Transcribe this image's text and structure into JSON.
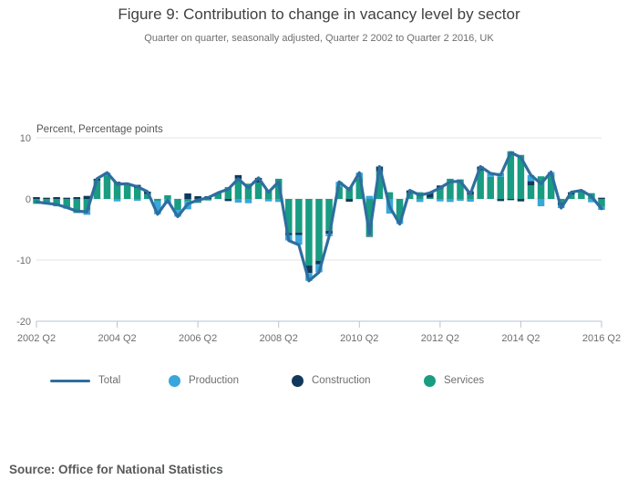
{
  "header": {
    "title": "Figure 9: Contribution to change in vacancy level by sector",
    "subtitle": "Quarter on quarter, seasonally adjusted, Quarter 2 2002 to Quarter 2 2016, UK"
  },
  "footer": {
    "source": "Source: Office for National Statistics"
  },
  "legend": {
    "items": [
      {
        "label": "Total",
        "swatch": "line",
        "color": "#2e6e9f"
      },
      {
        "label": "Production",
        "swatch": "circle",
        "color": "#37a7dc"
      },
      {
        "label": "Construction",
        "swatch": "circle",
        "color": "#10395c"
      },
      {
        "label": "Services",
        "swatch": "circle",
        "color": "#199c82"
      }
    ]
  },
  "colors": {
    "grid": "#e4e4e4",
    "axis": "#b5c6d4",
    "tick_text": "#6d6e71",
    "unit_label_text": "#555555"
  },
  "chart_data": {
    "type": "combo-stacked-bar-line",
    "title": "Figure 9: Contribution to change in vacancy level by sector",
    "subtitle": "Quarter on quarter, seasonally adjusted, Quarter 2 2002 to Quarter 2 2016, UK",
    "ylabel": "Percent, Percentage points",
    "ylim": [
      -20,
      10
    ],
    "yticks": [
      10,
      0,
      -10,
      -20
    ],
    "grid": "horizontal",
    "legend_position": "bottom",
    "xtick_labels": [
      "2002 Q2",
      "2004 Q2",
      "2006 Q2",
      "2008 Q2",
      "2010 Q2",
      "2012 Q2",
      "2014 Q2",
      "2016 Q2"
    ],
    "xtick_indices": [
      0,
      8,
      16,
      24,
      32,
      40,
      48,
      56
    ],
    "stack_order_from_baseline": [
      "Services",
      "Construction",
      "Production"
    ],
    "categories": [
      "2002 Q2",
      "2002 Q3",
      "2002 Q4",
      "2003 Q1",
      "2003 Q2",
      "2003 Q3",
      "2003 Q4",
      "2004 Q1",
      "2004 Q2",
      "2004 Q3",
      "2004 Q4",
      "2005 Q1",
      "2005 Q2",
      "2005 Q3",
      "2005 Q4",
      "2006 Q1",
      "2006 Q2",
      "2006 Q3",
      "2006 Q4",
      "2007 Q1",
      "2007 Q2",
      "2007 Q3",
      "2007 Q4",
      "2008 Q1",
      "2008 Q2",
      "2008 Q3",
      "2008 Q4",
      "2009 Q1",
      "2009 Q2",
      "2009 Q3",
      "2009 Q4",
      "2010 Q1",
      "2010 Q2",
      "2010 Q3",
      "2010 Q4",
      "2011 Q1",
      "2011 Q2",
      "2011 Q3",
      "2011 Q4",
      "2012 Q1",
      "2012 Q2",
      "2012 Q3",
      "2012 Q4",
      "2013 Q1",
      "2013 Q2",
      "2013 Q3",
      "2013 Q4",
      "2014 Q1",
      "2014 Q2",
      "2014 Q3",
      "2014 Q4",
      "2015 Q1",
      "2015 Q2",
      "2015 Q3",
      "2015 Q4",
      "2016 Q1",
      "2016 Q2"
    ],
    "bar_series": [
      {
        "name": "Production",
        "color": "#37a7dc",
        "values": [
          0,
          -0.2,
          0,
          -0.2,
          0,
          -0.7,
          0,
          0.5,
          -0.4,
          0,
          -0.3,
          0,
          -2.2,
          -0.8,
          -1.1,
          -1.3,
          0,
          0,
          0,
          0,
          -0.6,
          -0.7,
          0,
          -0.4,
          -0.5,
          -0.9,
          -1.6,
          -1.3,
          -1.3,
          -0.4,
          0.75,
          0,
          0.9,
          0.5,
          0,
          -2.4,
          -0.7,
          0,
          -0.5,
          0,
          -0.4,
          -0.5,
          -0.3,
          -0.45,
          0,
          0.6,
          0.65,
          0,
          0,
          1.0,
          -1.2,
          0.4,
          -0.5,
          0,
          0,
          -0.55,
          -0.5
        ]
      },
      {
        "name": "Construction",
        "color": "#10395c",
        "values": [
          0.3,
          0.2,
          0.3,
          0.2,
          0.3,
          0.5,
          0.3,
          0,
          0.3,
          0.2,
          0.5,
          0.4,
          0,
          0,
          0,
          0.9,
          0.45,
          0.45,
          0,
          -0.35,
          0.6,
          0,
          0.75,
          0,
          0,
          -0.3,
          -0.4,
          -1.2,
          -0.6,
          -0.5,
          0,
          -0.45,
          0,
          -0.1,
          0.75,
          0,
          0,
          0.45,
          0,
          0.8,
          0.5,
          0,
          0,
          0.55,
          0.6,
          0,
          -0.35,
          -0.2,
          -0.4,
          0.7,
          0,
          0,
          -0.35,
          0.35,
          0.25,
          0,
          0.2
        ]
      },
      {
        "name": "Services",
        "color": "#199c82",
        "values": [
          -0.8,
          -0.7,
          -1.2,
          -1.4,
          -2.3,
          -1.9,
          3.0,
          3.8,
          2.5,
          2.3,
          1.8,
          0.8,
          -0.3,
          0.6,
          -1.8,
          -0.4,
          -0.65,
          -0.25,
          1.0,
          1.95,
          3.3,
          2.5,
          2.7,
          1.5,
          3.3,
          -5.6,
          -5.5,
          -10.9,
          -10.1,
          -5.2,
          2.05,
          1.95,
          3.4,
          -6.1,
          4.55,
          1.1,
          -3.4,
          0.95,
          1.1,
          0.2,
          1.7,
          3.3,
          3.2,
          0.7,
          4.7,
          3.6,
          3.6,
          7.8,
          7.2,
          2.2,
          3.7,
          4.0,
          -0.65,
          0.75,
          1.15,
          0.95,
          -1.3
        ]
      }
    ],
    "line_series": {
      "name": "Total",
      "color": "#2e6e9f",
      "values": [
        -0.5,
        -0.7,
        -0.9,
        -1.4,
        -2.0,
        -2.1,
        3.3,
        4.3,
        2.4,
        2.5,
        2.0,
        1.2,
        -2.5,
        -0.2,
        -2.9,
        -0.8,
        -0.2,
        0.2,
        1.0,
        1.6,
        3.3,
        1.8,
        3.45,
        1.1,
        2.8,
        -6.8,
        -7.5,
        -13.4,
        -12.0,
        -6.1,
        2.8,
        1.5,
        4.3,
        -5.7,
        5.3,
        -1.3,
        -4.1,
        1.4,
        0.6,
        1.0,
        1.8,
        2.8,
        2.9,
        0.8,
        5.3,
        4.2,
        3.9,
        7.6,
        6.8,
        3.9,
        2.5,
        4.4,
        -1.5,
        1.1,
        1.4,
        0.4,
        -1.6
      ]
    }
  }
}
